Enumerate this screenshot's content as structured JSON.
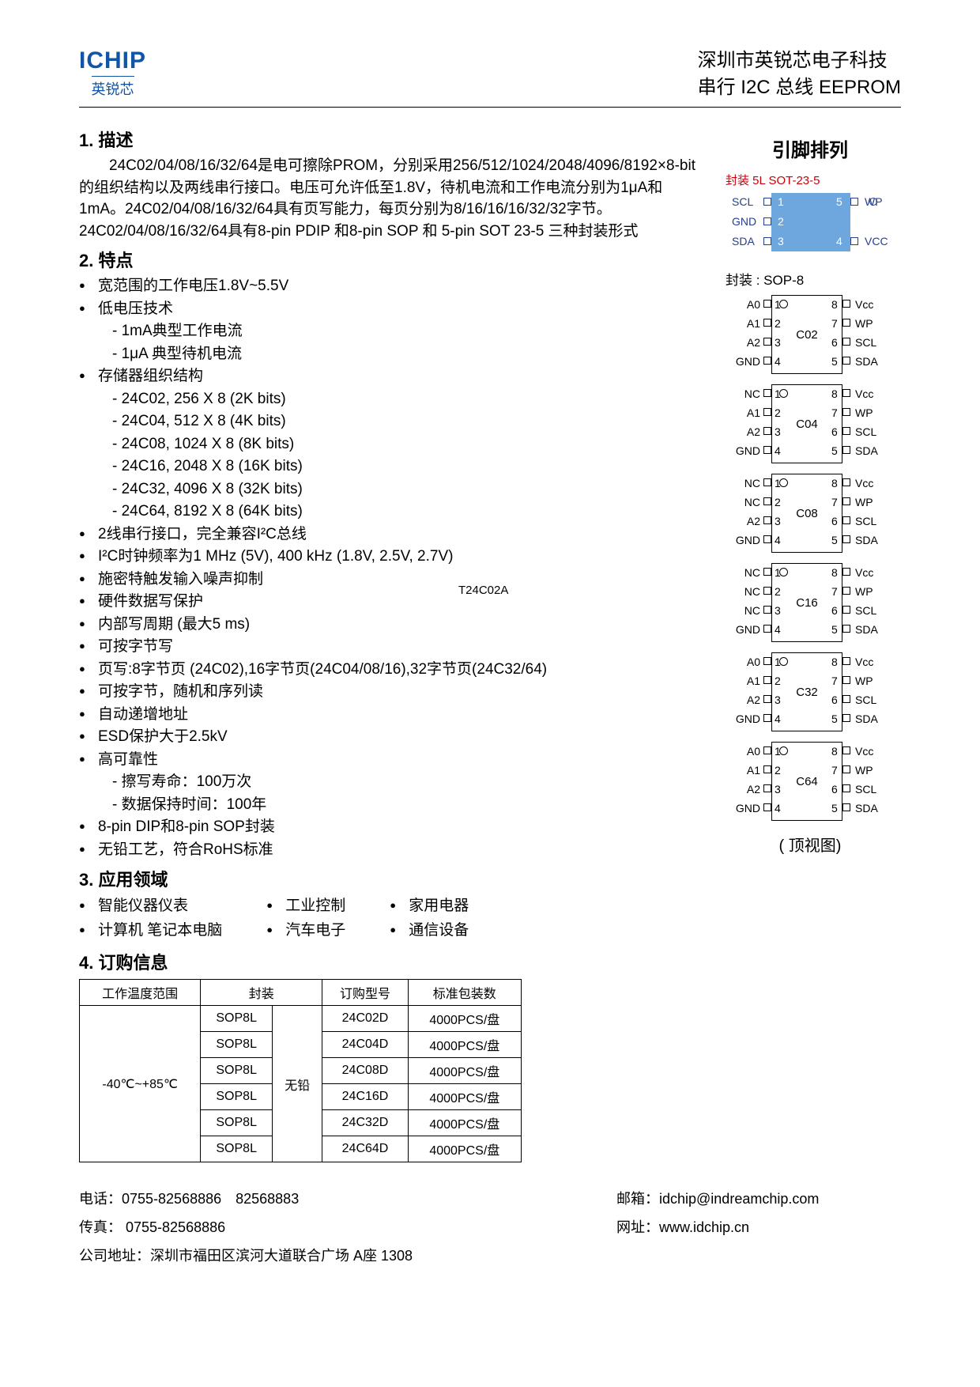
{
  "logo": {
    "main": "ICHIP",
    "sub": "英锐芯"
  },
  "header": {
    "line1": "深圳市英锐芯电子科技",
    "line2": "串行 I2C 总线 EEPROM"
  },
  "sec1": {
    "title": "1. 描述",
    "p1": "24C02/04/08/16/32/64是电可擦除PROM，分别采用256/512/1024/2048/4096/8192×8-bit的组织结构以及两线串行接口。电压可允许低至1.8V，待机电流和工作电流分别为1μA和1mA。24C02/04/08/16/32/64具有页写能力，每页分别为8/16/16/16/32/32字节。24C02/04/08/16/32/64具有8-pin PDIP 和8-pin SOP 和 5-pin SOT 23-5 三种封装形式"
  },
  "sec2": {
    "title": "2. 特点",
    "items": [
      "宽范围的工作电压1.8V~5.5V",
      "低电压技术\n- 1mA典型工作电流\n- 1μA 典型待机电流",
      "存储器组织结构\n- 24C02, 256 X 8 (2K bits)\n- 24C04, 512 X 8 (4K bits)\n- 24C08, 1024 X 8 (8K bits)\n- 24C16, 2048 X 8 (16K bits)\n- 24C32, 4096 X 8 (32K bits)\n- 24C64, 8192 X 8 (64K bits)",
      "2线串行接口，完全兼容I²C总线",
      "I²C时钟频率为1 MHz (5V), 400 kHz (1.8V, 2.5V, 2.7V)",
      "施密特触发输入噪声抑制",
      "硬件数据写保护",
      "内部写周期 (最大5 ms)",
      "可按字节写",
      "页写:8字节页 (24C02),16字节页(24C04/08/16),32字节页(24C32/64)",
      "可按字节，随机和序列读",
      "自动递增地址",
      "ESD保护大于2.5kV",
      "高可靠性\n- 擦写寿命：100万次\n- 数据保持时间：100年",
      "8-pin DIP和8-pin SOP封装",
      "无铅工艺，符合RoHS标准"
    ]
  },
  "sec3": {
    "title": "3. 应用领域",
    "cols": [
      [
        "智能仪器仪表",
        "计算机 笔记本电脑"
      ],
      [
        "工业控制",
        "汽车电子"
      ],
      [
        "家用电器",
        "通信设备"
      ]
    ]
  },
  "sec4": {
    "title": "4. 订购信息"
  },
  "floating_partno": "T24C02A",
  "pinout": {
    "title": "引脚排列",
    "sot_label": "封装 5L SOT-23-5",
    "sot_pins": {
      "left": [
        "SCL",
        "GND",
        "SDA"
      ],
      "right": [
        "WP",
        "VCC"
      ],
      "nums_left": [
        "1",
        "2",
        "3"
      ],
      "nums_right": [
        "5",
        "4"
      ]
    },
    "sop_label": "封装 : SOP-8",
    "packages": [
      {
        "center": "C02",
        "left": [
          "A0",
          "A1",
          "A2",
          "GND"
        ],
        "right": [
          "Vcc",
          "WP",
          "SCL",
          "SDA"
        ]
      },
      {
        "center": "C04",
        "left": [
          "NC",
          "A1",
          "A2",
          "GND"
        ],
        "right": [
          "Vcc",
          "WP",
          "SCL",
          "SDA"
        ]
      },
      {
        "center": "C08",
        "left": [
          "NC",
          "NC",
          "A2",
          "GND"
        ],
        "right": [
          "Vcc",
          "WP",
          "SCL",
          "SDA"
        ]
      },
      {
        "center": "C16",
        "left": [
          "NC",
          "NC",
          "NC",
          "GND"
        ],
        "right": [
          "Vcc",
          "WP",
          "SCL",
          "SDA"
        ]
      },
      {
        "center": "C32",
        "left": [
          "A0",
          "A1",
          "A2",
          "GND"
        ],
        "right": [
          "Vcc",
          "WP",
          "SCL",
          "SDA"
        ]
      },
      {
        "center": "C64",
        "left": [
          "A0",
          "A1",
          "A2",
          "GND"
        ],
        "right": [
          "Vcc",
          "WP",
          "SCL",
          "SDA"
        ]
      }
    ],
    "topview": "( 顶视图)"
  },
  "order_table": {
    "headers": [
      "工作温度范围",
      "封装",
      "",
      "订购型号",
      "标准包装数"
    ],
    "temp": "-40℃~+85℃",
    "leadfree": "无铅",
    "rows": [
      [
        "SOP8L",
        "24C02D",
        "4000PCS/盘"
      ],
      [
        "SOP8L",
        "24C04D",
        "4000PCS/盘"
      ],
      [
        "SOP8L",
        "24C08D",
        "4000PCS/盘"
      ],
      [
        "SOP8L",
        "24C16D",
        "4000PCS/盘"
      ],
      [
        "SOP8L",
        "24C32D",
        "4000PCS/盘"
      ],
      [
        "SOP8L",
        "24C64D",
        "4000PCS/盘"
      ]
    ]
  },
  "footer": {
    "tel": "电话：0755-82568886　82568883",
    "fax": "传真： 0755-82568886",
    "addr": "公司地址：深圳市福田区滨河大道联合广场 A座 1308",
    "email": "邮箱：idchip@indreamchip.com",
    "web": "网址：www.idchip.cn"
  }
}
